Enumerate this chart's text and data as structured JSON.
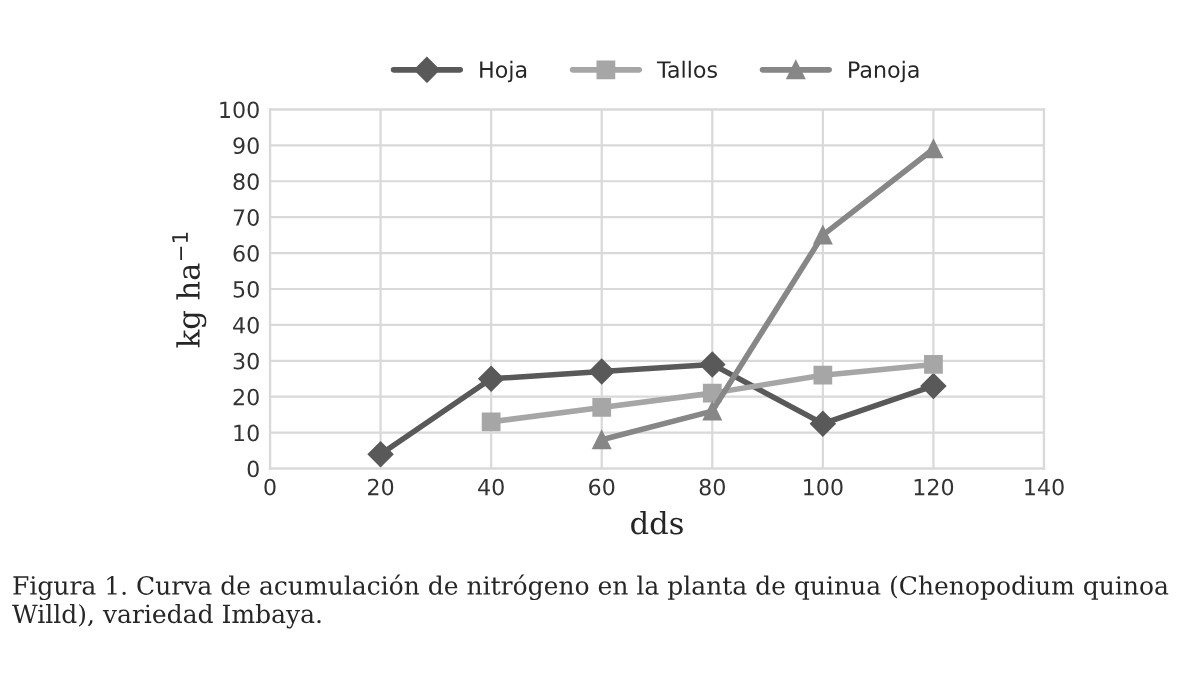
{
  "chart_data": {
    "type": "line",
    "xlabel": "dds",
    "ylabel": "kg ha$^{−1}$",
    "xlim": [
      0,
      140
    ],
    "xticks": [
      0,
      20,
      40,
      60,
      80,
      100,
      120,
      140
    ],
    "ylim": [
      0,
      100
    ],
    "yticks": [
      0,
      10,
      20,
      30,
      40,
      50,
      60,
      70,
      80,
      90,
      100
    ],
    "grid": true,
    "legend": "top",
    "series": [
      {
        "name": "Hoja",
        "color": "#595959",
        "marker": "diamond",
        "x": [
          20,
          40,
          60,
          80,
          100,
          120
        ],
        "values": [
          4,
          25,
          27,
          29,
          12.5,
          23
        ]
      },
      {
        "name": "Tallos",
        "color": "#a6a6a6",
        "marker": "square",
        "x": [
          40,
          60,
          80,
          100,
          120
        ],
        "values": [
          13,
          17,
          21,
          26,
          29
        ]
      },
      {
        "name": "Panoja",
        "color": "#878787",
        "marker": "triangle",
        "x": [
          60,
          80,
          100,
          120
        ],
        "values": [
          8,
          16,
          65,
          89
        ]
      }
    ],
    "annotations": [
      "Figura 1. Curva de acumulación de nitrógeno en la planta de quinua (Chenopodium quinoa Willd), variedad Imbaya."
    ]
  }
}
